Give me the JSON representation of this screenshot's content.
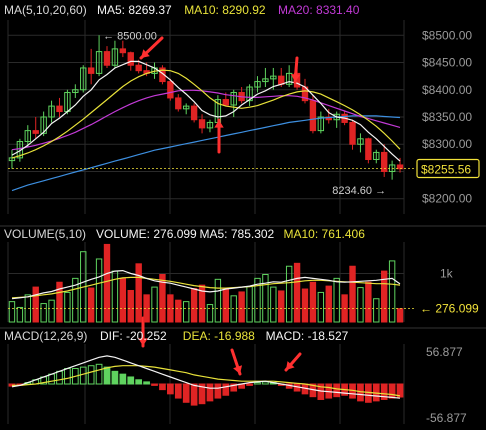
{
  "chart_data": [
    {
      "panel": "price",
      "type": "candlestick",
      "indicator_label": "MA(5,10,20,60)",
      "legend": [
        {
          "label": "MA5",
          "value": "8269.37",
          "color": "#f4f4f4"
        },
        {
          "label": "MA10",
          "value": "8290.92",
          "color": "#e8e23a"
        },
        {
          "label": "MA20",
          "value": "8331.40",
          "color": "#c23ad6"
        }
      ],
      "ylim": [
        8172,
        8528
      ],
      "y_ticks": [
        "$8500.00",
        "$8450.00",
        "$8400.00",
        "$8350.00",
        "$8300.00",
        "$8250.00",
        "$8200.00"
      ],
      "y_tick_values": [
        8500,
        8450,
        8400,
        8350,
        8300,
        8250,
        8200
      ],
      "last_price": "$8255.56",
      "last_price_value": 8255.56,
      "high_marker": "← 8500.00",
      "high_value": 8500,
      "low_marker": "8234.60 →",
      "low_value": 8234.6,
      "colors": {
        "up": "#5fd35f",
        "down": "#e02424",
        "ma5": "#f4f4f4",
        "ma10": "#e8e23a",
        "ma20": "#c23ad6",
        "ma60": "#3d8fe0",
        "last_price": "#f2e23a",
        "arrow": "#ff3030"
      },
      "candles": [
        [
          8270,
          8290,
          8255,
          8275
        ],
        [
          8275,
          8310,
          8268,
          8305
        ],
        [
          8305,
          8335,
          8295,
          8325
        ],
        [
          8325,
          8350,
          8310,
          8320
        ],
        [
          8320,
          8360,
          8315,
          8350
        ],
        [
          8350,
          8380,
          8340,
          8370
        ],
        [
          8370,
          8385,
          8350,
          8360
        ],
        [
          8360,
          8400,
          8355,
          8395
        ],
        [
          8395,
          8410,
          8385,
          8400
        ],
        [
          8400,
          8445,
          8395,
          8440
        ],
        [
          8440,
          8475,
          8410,
          8430
        ],
        [
          8430,
          8500,
          8425,
          8470
        ],
        [
          8470,
          8480,
          8440,
          8445
        ],
        [
          8445,
          8490,
          8440,
          8475
        ],
        [
          8475,
          8490,
          8460,
          8468
        ],
        [
          8468,
          8470,
          8435,
          8445
        ],
        [
          8445,
          8455,
          8430,
          8435
        ],
        [
          8435,
          8450,
          8425,
          8430
        ],
        [
          8430,
          8450,
          8420,
          8440
        ],
        [
          8440,
          8445,
          8410,
          8415
        ],
        [
          8415,
          8420,
          8380,
          8385
        ],
        [
          8385,
          8392,
          8360,
          8365
        ],
        [
          8365,
          8375,
          8355,
          8370
        ],
        [
          8370,
          8375,
          8340,
          8345
        ],
        [
          8345,
          8355,
          8320,
          8330
        ],
        [
          8330,
          8345,
          8322,
          8340
        ],
        [
          8340,
          8390,
          8335,
          8382
        ],
        [
          8382,
          8395,
          8370,
          8372
        ],
        [
          8372,
          8400,
          8350,
          8395
        ],
        [
          8395,
          8405,
          8375,
          8380
        ],
        [
          8380,
          8410,
          8370,
          8405
        ],
        [
          8405,
          8425,
          8395,
          8415
        ],
        [
          8415,
          8440,
          8405,
          8420
        ],
        [
          8420,
          8440,
          8400,
          8425
        ],
        [
          8425,
          8440,
          8405,
          8410
        ],
        [
          8410,
          8445,
          8405,
          8430
        ],
        [
          8430,
          8440,
          8400,
          8405
        ],
        [
          8405,
          8420,
          8375,
          8380
        ],
        [
          8380,
          8390,
          8320,
          8325
        ],
        [
          8325,
          8360,
          8320,
          8350
        ],
        [
          8350,
          8365,
          8338,
          8345
        ],
        [
          8345,
          8360,
          8330,
          8355
        ],
        [
          8355,
          8362,
          8335,
          8340
        ],
        [
          8340,
          8345,
          8290,
          8300
        ],
        [
          8300,
          8320,
          8285,
          8310
        ],
        [
          8310,
          8312,
          8265,
          8272
        ],
        [
          8272,
          8290,
          8265,
          8285
        ],
        [
          8285,
          8300,
          8240,
          8250
        ],
        [
          8250,
          8270,
          8235,
          8262
        ],
        [
          8262,
          8275,
          8248,
          8255
        ]
      ],
      "ma5": [
        8280,
        8288,
        8298,
        8310,
        8322,
        8338,
        8348,
        8360,
        8372,
        8388,
        8400,
        8418,
        8428,
        8440,
        8446,
        8452,
        8452,
        8446,
        8440,
        8430,
        8418,
        8404,
        8392,
        8378,
        8362,
        8354,
        8350,
        8352,
        8360,
        8372,
        8382,
        8392,
        8398,
        8406,
        8410,
        8415,
        8412,
        8405,
        8390,
        8375,
        8358,
        8350,
        8348,
        8344,
        8336,
        8322,
        8310,
        8296,
        8282,
        8269
      ],
      "ma10": [
        8275,
        8279,
        8284,
        8290,
        8297,
        8305,
        8314,
        8324,
        8335,
        8346,
        8358,
        8370,
        8382,
        8394,
        8406,
        8416,
        8424,
        8430,
        8434,
        8436,
        8435,
        8430,
        8421,
        8410,
        8398,
        8385,
        8375,
        8370,
        8368,
        8366,
        8368,
        8371,
        8376,
        8381,
        8387,
        8392,
        8396,
        8398,
        8396,
        8392,
        8385,
        8378,
        8371,
        8363,
        8354,
        8344,
        8333,
        8320,
        8306,
        8291
      ],
      "ma20": [
        8290,
        8292,
        8295,
        8298,
        8302,
        8306,
        8311,
        8316,
        8322,
        8329,
        8336,
        8344,
        8352,
        8360,
        8367,
        8374,
        8380,
        8385,
        8389,
        8392,
        8395,
        8398,
        8399,
        8399,
        8398,
        8396,
        8394,
        8391,
        8389,
        8387,
        8386,
        8386,
        8387,
        8388,
        8389,
        8389,
        8388,
        8385,
        8381,
        8376,
        8371,
        8366,
        8361,
        8356,
        8351,
        8347,
        8343,
        8339,
        8335,
        8331
      ],
      "ma60": [
        8215,
        8220,
        8225,
        8229,
        8233,
        8237,
        8241,
        8245,
        8249,
        8253,
        8257,
        8261,
        8265,
        8269,
        8273,
        8277,
        8281,
        8285,
        8289,
        8292,
        8295,
        8298,
        8301,
        8304,
        8307,
        8310,
        8313,
        8316,
        8319,
        8322,
        8325,
        8328,
        8331,
        8334,
        8337,
        8340,
        8342,
        8344,
        8346,
        8348,
        8349,
        8350,
        8351,
        8352,
        8352,
        8352,
        8352,
        8351,
        8350,
        8349
      ]
    },
    {
      "panel": "volume",
      "type": "bar",
      "indicator_label": "VOLUME(5,10)",
      "legend": [
        {
          "label": "VOLUME",
          "value": "276.099",
          "color": "#f4f4f4"
        },
        {
          "label": "MA5",
          "value": "785.302",
          "color": "#f4f4f4"
        },
        {
          "label": "MA10",
          "value": "761.406",
          "color": "#e8e23a"
        }
      ],
      "ylim": [
        0,
        1650
      ],
      "y_ticks": [
        "1k"
      ],
      "y_tick_values": [
        1000
      ],
      "last_value_label": "276.099",
      "last_value": 276.099,
      "values": [
        420,
        300,
        560,
        720,
        380,
        450,
        820,
        610,
        900,
        1450,
        700,
        1300,
        1600,
        1050,
        900,
        650,
        1200,
        560,
        720,
        980,
        560,
        450,
        420,
        690,
        760,
        360,
        880,
        700,
        540,
        620,
        730,
        900,
        980,
        720,
        640,
        1150,
        1210,
        680,
        820,
        610,
        740,
        900,
        560,
        1150,
        710,
        820,
        480,
        1050,
        1260,
        276
      ],
      "ma5": [
        480,
        500,
        520,
        560,
        600,
        630,
        680,
        720,
        760,
        820,
        880,
        930,
        1000,
        1050,
        1060,
        1000,
        960,
        900,
        850,
        820,
        800,
        760,
        720,
        680,
        640,
        620,
        640,
        680,
        700,
        720,
        740,
        780,
        800,
        830,
        820,
        860,
        900,
        920,
        900,
        880,
        860,
        830,
        820,
        830,
        840,
        850,
        860,
        880,
        900,
        785
      ],
      "ma10": [
        500,
        510,
        520,
        540,
        560,
        580,
        610,
        640,
        680,
        720,
        760,
        800,
        840,
        880,
        910,
        920,
        920,
        900,
        880,
        860,
        840,
        810,
        780,
        750,
        730,
        710,
        700,
        700,
        710,
        720,
        730,
        750,
        770,
        790,
        800,
        810,
        830,
        850,
        860,
        860,
        850,
        840,
        830,
        820,
        810,
        800,
        790,
        790,
        780,
        761
      ]
    },
    {
      "panel": "macd",
      "type": "bar",
      "indicator_label": "MACD(12,26,9)",
      "legend": [
        {
          "label": "DIF",
          "value": "-20.252",
          "color": "#f4f4f4"
        },
        {
          "label": "DEA",
          "value": "-16.988",
          "color": "#e8e23a"
        },
        {
          "label": "MACD",
          "value": "-18.527",
          "color": "#f4f4f4"
        }
      ],
      "ylim": [
        -56.877,
        56.877
      ],
      "y_ticks": [
        "56.877",
        "-56.877"
      ],
      "y_tick_values": [
        56.877,
        -56.877
      ],
      "histogram": [
        -3,
        -2,
        2,
        6,
        10,
        14,
        18,
        22,
        22,
        24,
        26,
        28,
        24,
        18,
        14,
        10,
        6,
        3,
        -2,
        -8,
        -14,
        -20,
        -26,
        -30,
        -28,
        -24,
        -20,
        -16,
        -10,
        -6,
        -2,
        2,
        3,
        2,
        -2,
        -6,
        -10,
        -14,
        -18,
        -22,
        -20,
        -18,
        -16,
        -20,
        -24,
        -26,
        -24,
        -22,
        -20,
        -18.5
      ],
      "dif": [
        -4,
        -2,
        2,
        6,
        10,
        14,
        18,
        22,
        26,
        30,
        34,
        38,
        40,
        38,
        34,
        30,
        26,
        22,
        18,
        14,
        10,
        6,
        2,
        -2,
        -4,
        -6,
        -6,
        -4,
        -2,
        0,
        2,
        3,
        4,
        2,
        0,
        -2,
        -4,
        -6,
        -8,
        -10,
        -11,
        -12,
        -13,
        -14,
        -15,
        -16,
        -17,
        -18,
        -19,
        -20.252
      ],
      "dea": [
        -2,
        -2,
        -1,
        0,
        2,
        4,
        6,
        8,
        11,
        14,
        17,
        20,
        23,
        25,
        26,
        26,
        26,
        25,
        24,
        22,
        20,
        18,
        16,
        13,
        11,
        9,
        7,
        6,
        5,
        4,
        4,
        4,
        4,
        4,
        3,
        2,
        1,
        0,
        -2,
        -4,
        -5,
        -7,
        -8,
        -9,
        -11,
        -12,
        -13,
        -14,
        -15,
        -16.988
      ]
    }
  ]
}
